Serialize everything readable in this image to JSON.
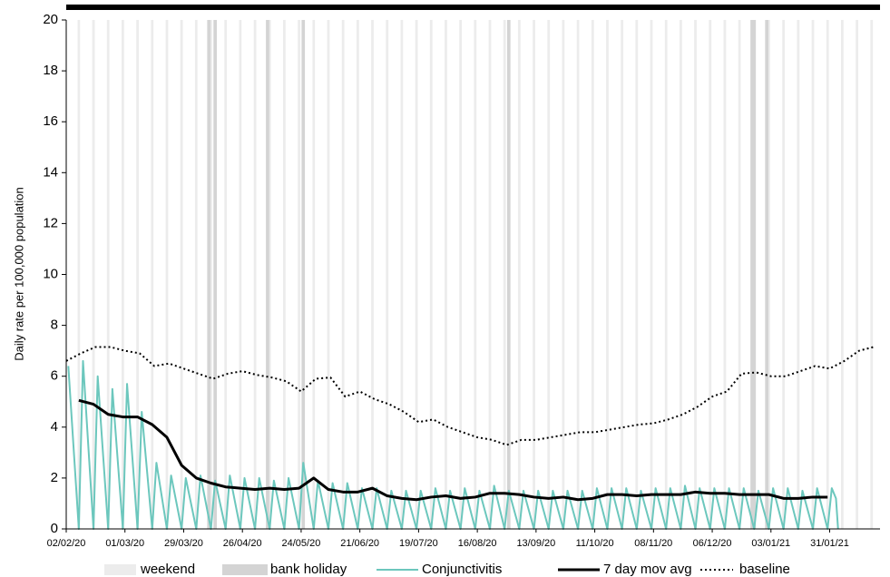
{
  "chart_data": {
    "type": "line",
    "y_label": "Daily rate per 100,000 population",
    "xlim": [
      0,
      388
    ],
    "ylim": [
      0,
      20
    ],
    "yticks": [
      0,
      2,
      4,
      6,
      8,
      10,
      12,
      14,
      16,
      18,
      20
    ],
    "xticks": [
      {
        "value": 0,
        "label": "02/02/20"
      },
      {
        "value": 28,
        "label": "01/03/20"
      },
      {
        "value": 56,
        "label": "29/03/20"
      },
      {
        "value": 84,
        "label": "26/04/20"
      },
      {
        "value": 112,
        "label": "24/05/20"
      },
      {
        "value": 140,
        "label": "21/06/20"
      },
      {
        "value": 168,
        "label": "19/07/20"
      },
      {
        "value": 196,
        "label": "16/08/20"
      },
      {
        "value": 224,
        "label": "13/09/20"
      },
      {
        "value": 252,
        "label": "11/10/20"
      },
      {
        "value": 280,
        "label": "08/11/20"
      },
      {
        "value": 308,
        "label": "06/12/20"
      },
      {
        "value": 336,
        "label": "03/01/21"
      },
      {
        "value": 364,
        "label": "31/01/21"
      }
    ],
    "weekends": {
      "name": "weekend",
      "color": "#ececec",
      "x": [
        6,
        13,
        20,
        27,
        34,
        41,
        48,
        55,
        62,
        69,
        76,
        83,
        90,
        97,
        104,
        111,
        118,
        125,
        132,
        139,
        146,
        153,
        160,
        167,
        174,
        181,
        188,
        195,
        202,
        209,
        216,
        223,
        230,
        237,
        244,
        251,
        258,
        265,
        272,
        279,
        286,
        293,
        300,
        307,
        314,
        321,
        328,
        335,
        342,
        349,
        356,
        363,
        370,
        377,
        384
      ]
    },
    "bank_holidays": {
      "name": "bank holiday",
      "color": "#d4d4d4",
      "x": [
        68,
        71,
        96,
        113,
        211,
        327,
        328,
        334
      ]
    },
    "series": [
      {
        "name": "Conjunctivitis",
        "color": "#6cc7bd",
        "style": "solid",
        "x": [
          1,
          6,
          8,
          13,
          15,
          20,
          22,
          27,
          29,
          34,
          36,
          41,
          43,
          48,
          50,
          55,
          57,
          62,
          64,
          69,
          71,
          76,
          78,
          83,
          85,
          90,
          92,
          97,
          99,
          104,
          106,
          111,
          113,
          118,
          120,
          125,
          127,
          132,
          134,
          139,
          141,
          146,
          148,
          153,
          155,
          160,
          162,
          167,
          169,
          174,
          176,
          181,
          183,
          188,
          190,
          195,
          197,
          202,
          204,
          209,
          211,
          216,
          218,
          223,
          225,
          230,
          232,
          237,
          239,
          244,
          246,
          251,
          253,
          258,
          260,
          265,
          267,
          272,
          274,
          279,
          281,
          286,
          288,
          293,
          295,
          300,
          302,
          307,
          309,
          314,
          316,
          321,
          323,
          328,
          330,
          335,
          337,
          342,
          344,
          349,
          351,
          356,
          358,
          363,
          365,
          367,
          368
        ],
        "values": [
          6.4,
          0,
          6.6,
          0,
          6.0,
          0,
          5.5,
          0,
          5.7,
          0,
          4.6,
          0,
          2.6,
          0,
          2.1,
          0,
          2.0,
          0,
          2.1,
          0,
          1.9,
          0,
          2.1,
          0,
          2.0,
          0,
          2.0,
          0,
          1.9,
          0,
          2.0,
          0,
          2.6,
          0,
          1.9,
          0,
          1.8,
          0,
          1.8,
          0,
          1.6,
          0,
          1.6,
          0,
          1.5,
          0,
          1.5,
          0,
          1.5,
          0,
          1.6,
          0,
          1.5,
          0,
          1.6,
          0,
          1.5,
          0,
          1.7,
          0,
          1.5,
          0,
          1.5,
          0,
          1.5,
          0,
          1.5,
          0,
          1.5,
          0,
          1.5,
          0,
          1.6,
          0,
          1.6,
          0,
          1.6,
          0,
          1.5,
          0,
          1.6,
          0,
          1.6,
          0,
          1.7,
          0,
          1.6,
          0,
          1.6,
          0,
          1.6,
          0,
          1.6,
          0,
          1.5,
          0,
          1.6,
          0,
          1.6,
          0,
          1.5,
          0,
          1.6,
          0,
          1.6,
          1.2,
          0
        ]
      },
      {
        "name": "7 day mov avg",
        "color": "#000000",
        "style": "thick",
        "x": [
          6,
          13,
          20,
          27,
          34,
          41,
          48,
          55,
          62,
          69,
          76,
          83,
          90,
          97,
          104,
          111,
          118,
          125,
          132,
          139,
          146,
          153,
          160,
          167,
          174,
          181,
          188,
          195,
          202,
          209,
          216,
          223,
          230,
          237,
          244,
          251,
          258,
          265,
          272,
          279,
          286,
          293,
          300,
          307,
          314,
          321,
          328,
          335,
          342,
          349,
          356,
          363
        ],
        "values": [
          5.05,
          4.9,
          4.5,
          4.4,
          4.4,
          4.1,
          3.6,
          2.5,
          2.0,
          1.8,
          1.65,
          1.6,
          1.55,
          1.6,
          1.55,
          1.6,
          2.0,
          1.55,
          1.45,
          1.45,
          1.6,
          1.3,
          1.2,
          1.15,
          1.25,
          1.3,
          1.2,
          1.25,
          1.4,
          1.4,
          1.35,
          1.25,
          1.2,
          1.25,
          1.15,
          1.2,
          1.35,
          1.35,
          1.3,
          1.35,
          1.35,
          1.35,
          1.45,
          1.4,
          1.4,
          1.35,
          1.35,
          1.35,
          1.2,
          1.2,
          1.25,
          1.25
        ]
      },
      {
        "name": "baseline",
        "color": "#000000",
        "style": "dotted",
        "x": [
          0,
          7,
          14,
          21,
          28,
          35,
          42,
          49,
          56,
          63,
          70,
          77,
          84,
          91,
          98,
          105,
          112,
          119,
          126,
          133,
          140,
          147,
          154,
          161,
          168,
          175,
          182,
          189,
          196,
          203,
          210,
          217,
          224,
          231,
          238,
          245,
          252,
          259,
          266,
          273,
          280,
          287,
          294,
          301,
          308,
          315,
          322,
          329,
          336,
          343,
          350,
          357,
          364,
          371,
          378,
          385
        ],
        "values": [
          6.6,
          6.9,
          7.15,
          7.15,
          7.0,
          6.9,
          6.4,
          6.5,
          6.3,
          6.1,
          5.9,
          6.1,
          6.2,
          6.05,
          5.95,
          5.8,
          5.4,
          5.9,
          5.95,
          5.2,
          5.4,
          5.1,
          4.9,
          4.6,
          4.2,
          4.3,
          4.0,
          3.8,
          3.6,
          3.5,
          3.3,
          3.5,
          3.5,
          3.6,
          3.7,
          3.8,
          3.8,
          3.9,
          4.0,
          4.1,
          4.15,
          4.3,
          4.5,
          4.8,
          5.2,
          5.4,
          6.1,
          6.15,
          6.0,
          6.0,
          6.2,
          6.4,
          6.3,
          6.6,
          7.0,
          7.15
        ]
      }
    ]
  }
}
